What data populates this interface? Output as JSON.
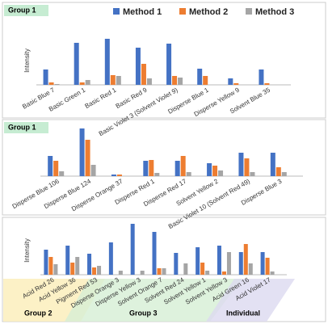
{
  "chart_data": [
    {
      "type": "bar",
      "label": "Group 1",
      "y_label": "Intensity",
      "ylim": [
        0,
        65
      ],
      "legend": "top",
      "categories": [
        "Basic Blue 7",
        "Basic Green 1",
        "Basic Red 1",
        "Basic Red 9",
        "Basic Violet 3 (Solvent Violet 9)",
        "Disperse Blue 1",
        "Disperse Yellow 9",
        "Solvent Blue 35"
      ],
      "series": [
        {
          "name": "Method 1",
          "color": "#4472c4",
          "values": [
            19,
            52,
            57,
            46,
            51,
            20,
            8,
            19
          ]
        },
        {
          "name": "Method 2",
          "color": "#ed7d31",
          "values": [
            3,
            3,
            12,
            26,
            11,
            11,
            2,
            2
          ]
        },
        {
          "name": "Method 3",
          "color": "#a5a5a5",
          "values": [
            1,
            6,
            11,
            8,
            9,
            0,
            0,
            0
          ]
        }
      ]
    },
    {
      "type": "bar",
      "label": "Group 1",
      "ylim": [
        0,
        65
      ],
      "categories": [
        "Disperse Blue 106",
        "Disperse Blue 124",
        "Disperse Orange 37",
        "Disperse Red 1",
        "Disperse Red 17",
        "Solvent Yellow 2",
        "Basic Violet 10 (Solvent Red 49)",
        "Disperse Blue 3"
      ],
      "series": [
        {
          "color": "#4472c4",
          "values": [
            25,
            59,
            2,
            19,
            19,
            16,
            29,
            29
          ]
        },
        {
          "color": "#ed7d31",
          "values": [
            19,
            45,
            2,
            20,
            25,
            13,
            22,
            11
          ]
        },
        {
          "color": "#a5a5a5",
          "values": [
            6,
            14,
            0,
            4,
            5,
            7,
            5,
            5
          ]
        }
      ]
    },
    {
      "type": "bar",
      "y_label": "Intensity",
      "ylim": [
        0,
        65
      ],
      "groups": [
        "Group 2",
        "Group 3",
        "Individual"
      ],
      "categories": [
        "Acid Red 26",
        "Acid Yellow 36",
        "Pigment Red 53",
        "Disperse Orange 3",
        "Disperse Yellow 3",
        "Solvent Orange 7",
        "Solvent Red 24",
        "Solvent Yellow 1",
        "Solvent Yellow 3",
        "Acid Green 16",
        "Acid Violet 17"
      ],
      "series": [
        {
          "color": "#4472c4",
          "values": [
            31,
            36,
            26,
            40,
            63,
            53,
            27,
            34,
            36,
            28,
            28
          ]
        },
        {
          "color": "#ed7d31",
          "values": [
            22,
            15,
            9,
            0,
            0,
            8,
            0,
            15,
            4,
            38,
            21
          ]
        },
        {
          "color": "#a5a5a5",
          "values": [
            13,
            22,
            11,
            5,
            5,
            8,
            14,
            5,
            28,
            14,
            4
          ]
        }
      ]
    }
  ]
}
